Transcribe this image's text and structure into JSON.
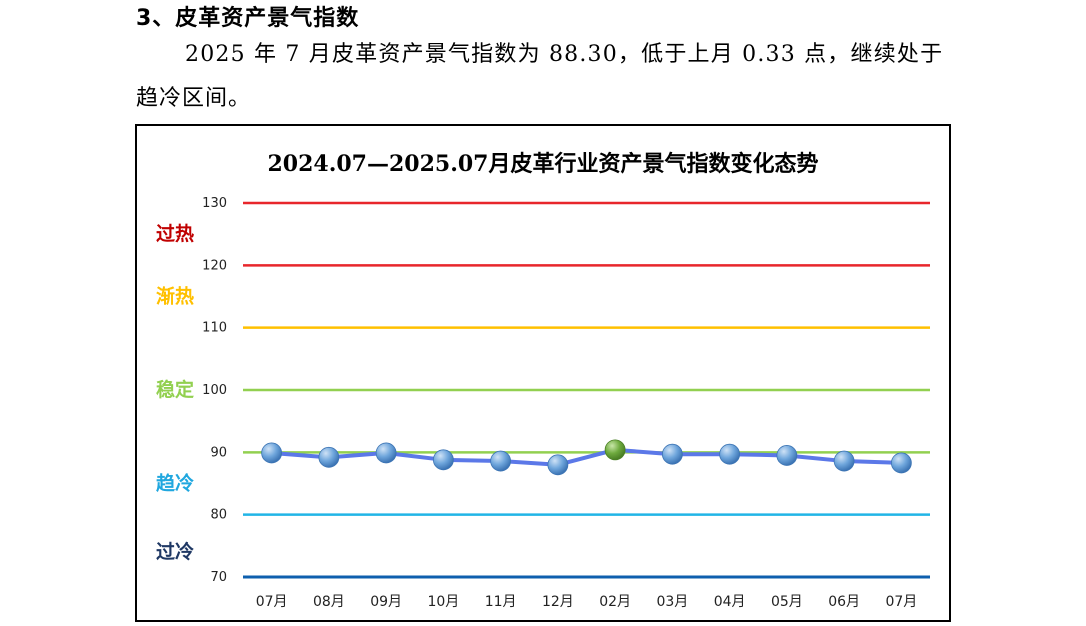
{
  "section": {
    "title": "3、皮革资产景气指数"
  },
  "paragraph": {
    "line1": "2025 年 7 月皮革资产景气指数为 88.30，低于上月 0.33 点，继续处于",
    "line2": "趋冷区间。"
  },
  "chart_data": {
    "type": "line",
    "title": "2024.07—2025.07月皮革行业资产景气指数变化态势",
    "categories": [
      "07月",
      "08月",
      "09月",
      "10月",
      "11月",
      "12月",
      "02月",
      "03月",
      "04月",
      "05月",
      "06月",
      "07月"
    ],
    "series": [
      {
        "values": [
          89.9,
          89.2,
          89.9,
          88.8,
          88.6,
          88.0,
          90.4,
          89.7,
          89.7,
          89.5,
          88.6,
          88.3
        ]
      }
    ],
    "ylim": [
      70,
      130
    ],
    "yticks": [
      70,
      80,
      90,
      100,
      110,
      120,
      130
    ],
    "reference_lines": [
      {
        "value": 130,
        "color": "#e8262b"
      },
      {
        "value": 120,
        "color": "#e8262b"
      },
      {
        "value": 110,
        "color": "#ffc000"
      },
      {
        "value": 100,
        "color": "#92d050"
      },
      {
        "value": 90,
        "color": "#92d050"
      },
      {
        "value": 80,
        "color": "#21b5e6"
      },
      {
        "value": 70,
        "color": "#0e5fae"
      }
    ],
    "zones": [
      {
        "label": "过热",
        "value": 125,
        "color": "#c00000"
      },
      {
        "label": "渐热",
        "value": 115,
        "color": "#ffc000"
      },
      {
        "label": "稳定",
        "value": 100,
        "color": "#92d050"
      },
      {
        "label": "趋冷",
        "value": 85,
        "color": "#20a7df"
      },
      {
        "label": "过冷",
        "value": 74,
        "color": "#1f3864"
      }
    ],
    "line_color": "#5b78e8",
    "marker_color": "#5b9bd5",
    "highlight_index": 6,
    "highlight_color": "#70ad47"
  }
}
